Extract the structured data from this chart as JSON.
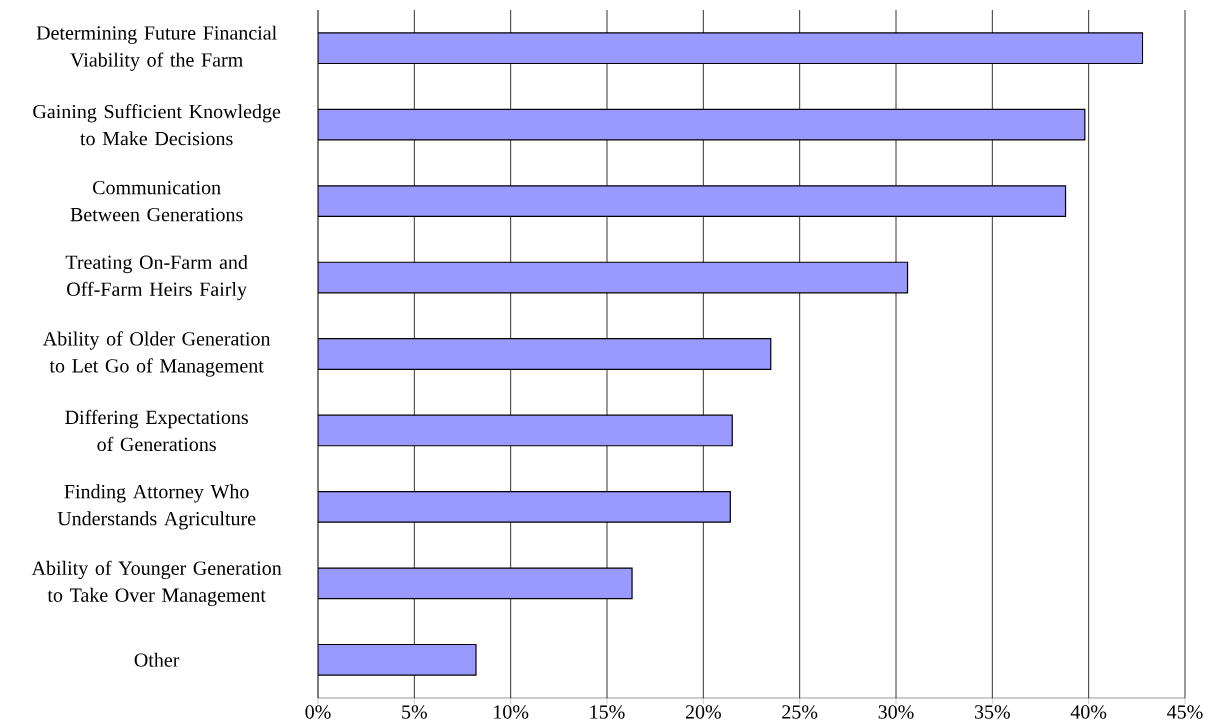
{
  "chart_data": {
    "type": "bar",
    "orientation": "horizontal",
    "categories": [
      "Determining Future Financial Viability of the Farm",
      "Gaining Sufficient Knowledge to Make Decisions",
      "Communication Between Generations",
      "Treating On-Farm and Off-Farm Heirs Fairly",
      "Ability of Older Generation to Let Go of Management",
      "Differing Expectations of Generations",
      "Finding Attorney Who Understands Agriculture",
      "Ability of Younger Generation to Take Over Management",
      "Other"
    ],
    "values": [
      42.8,
      39.8,
      38.8,
      30.6,
      23.5,
      21.5,
      21.4,
      16.3,
      8.2
    ],
    "color": "#9999ff",
    "xlim": [
      0,
      45
    ],
    "xticks": [
      {
        "value": 0,
        "label": "0%"
      },
      {
        "value": 5,
        "label": "5%"
      },
      {
        "value": 10,
        "label": "10%"
      },
      {
        "value": 15,
        "label": "15%"
      },
      {
        "value": 20,
        "label": "20%"
      },
      {
        "value": 25,
        "label": "25%"
      },
      {
        "value": 30,
        "label": "30%"
      },
      {
        "value": 35,
        "label": "35%"
      },
      {
        "value": 40,
        "label": "40%"
      },
      {
        "value": 45,
        "label": "45%"
      }
    ],
    "grid": "x"
  }
}
